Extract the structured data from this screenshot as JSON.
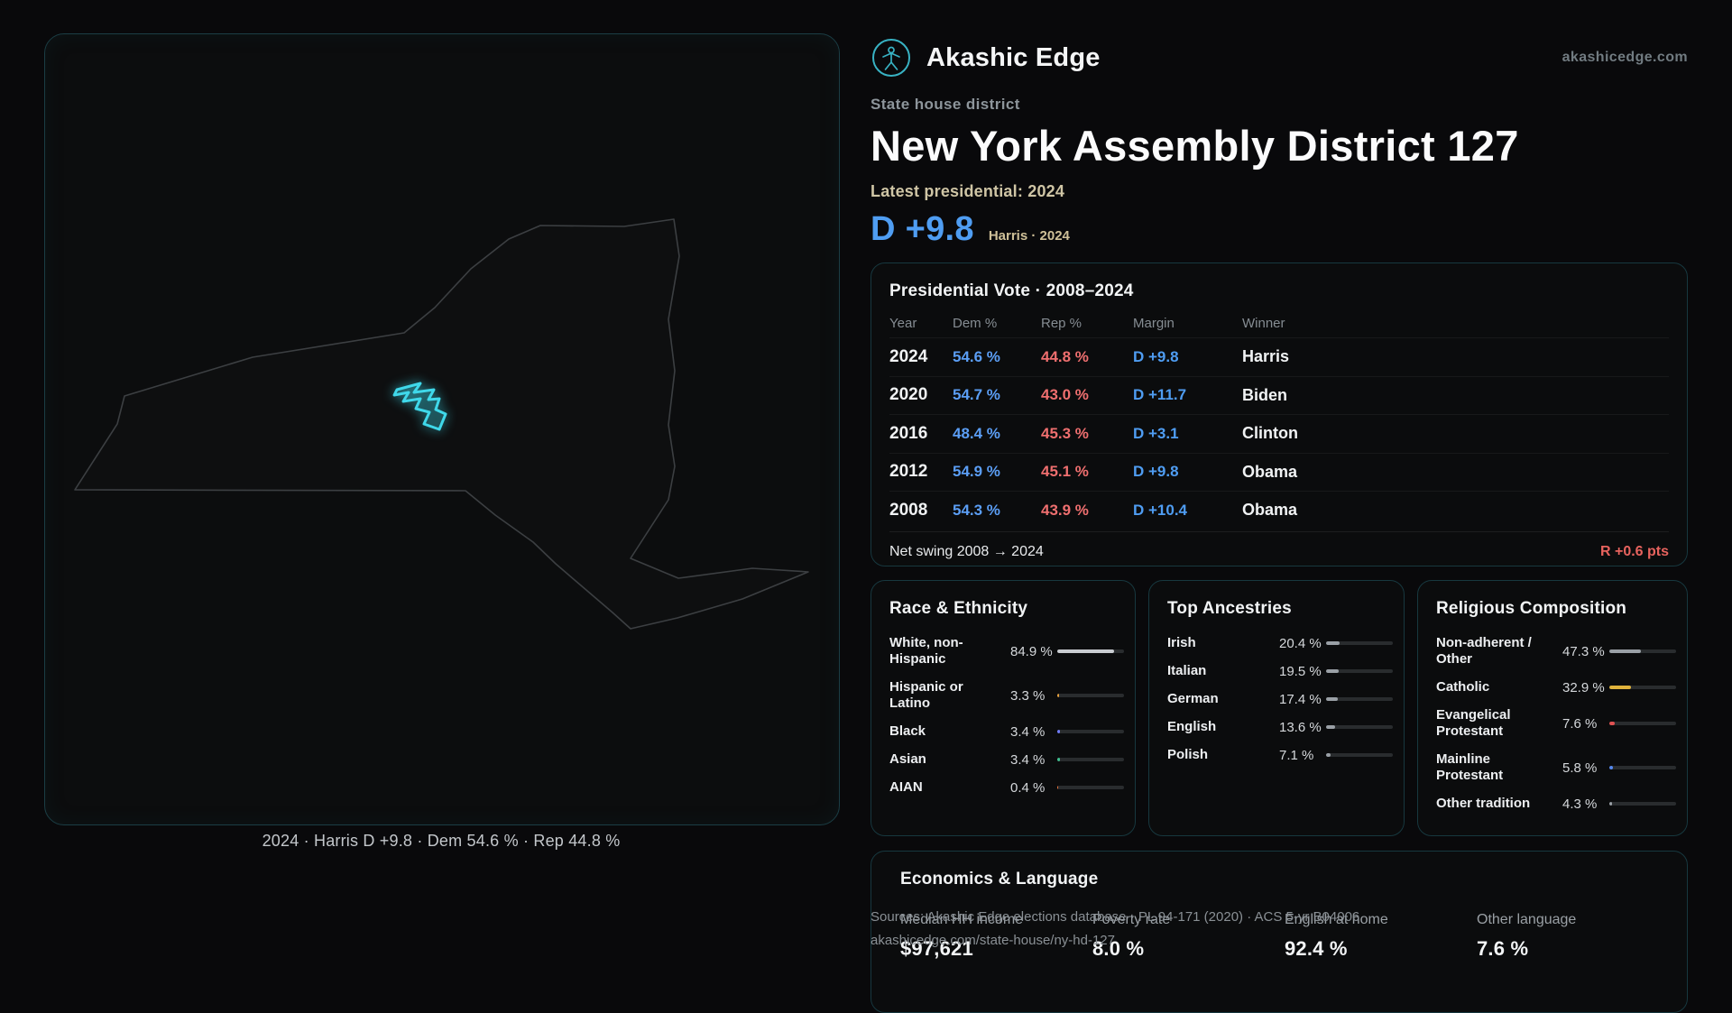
{
  "site": {
    "brand": "Akashic Edge",
    "domain": "akashicedge.com",
    "accent": "#38b2c3"
  },
  "map": {
    "caption": "2024 · Harris D +9.8 · Dem 54.6 % · Rep 44.8 %",
    "district_color": "#3fd8ea",
    "outline_color": "#3c3f42"
  },
  "header": {
    "kicker": "State house district",
    "title": "New York Assembly District 127",
    "latest_label": "Latest presidential: 2024",
    "margin_big": "D +9.8",
    "margin_note": "Harris · 2024",
    "dem_color": "#5b9ef5",
    "rep_color": "#ef6f6f"
  },
  "presidential": {
    "title": "Presidential Vote · 2008–2024",
    "columns": [
      "Year",
      "Dem %",
      "Rep %",
      "Margin",
      "Winner"
    ],
    "rows": [
      {
        "year": "2024",
        "dem": "54.6 %",
        "rep": "44.8 %",
        "margin": "D +9.8",
        "winner": "Harris"
      },
      {
        "year": "2020",
        "dem": "54.7 %",
        "rep": "43.0 %",
        "margin": "D +11.7",
        "winner": "Biden"
      },
      {
        "year": "2016",
        "dem": "48.4 %",
        "rep": "45.3 %",
        "margin": "D +3.1",
        "winner": "Clinton"
      },
      {
        "year": "2012",
        "dem": "54.9 %",
        "rep": "45.1 %",
        "margin": "D +9.8",
        "winner": "Obama"
      },
      {
        "year": "2008",
        "dem": "54.3 %",
        "rep": "43.9 %",
        "margin": "D +10.4",
        "winner": "Obama"
      }
    ],
    "footer_label": "Net swing 2008 → 2024",
    "footer_value": "R +0.6 pts"
  },
  "race": {
    "title": "Race & Ethnicity",
    "items": [
      {
        "label": "White, non-Hispanic",
        "value": "84.9 %",
        "pct": 84.9,
        "color": "#c9cdd1"
      },
      {
        "label": "Hispanic or Latino",
        "value": "3.3 %",
        "pct": 3.3,
        "color": "#e8a23c"
      },
      {
        "label": "Black",
        "value": "3.4 %",
        "pct": 3.4,
        "color": "#6f7bf7"
      },
      {
        "label": "Asian",
        "value": "3.4 %",
        "pct": 3.4,
        "color": "#3fbf8f"
      },
      {
        "label": "AIAN",
        "value": "0.4 %",
        "pct": 0.4,
        "color": "#e8743c"
      }
    ]
  },
  "ancestries": {
    "title": "Top Ancestries",
    "items": [
      {
        "label": "Irish",
        "value": "20.4 %",
        "pct": 20.4,
        "color": "#9aa0a6"
      },
      {
        "label": "Italian",
        "value": "19.5 %",
        "pct": 19.5,
        "color": "#9aa0a6"
      },
      {
        "label": "German",
        "value": "17.4 %",
        "pct": 17.4,
        "color": "#9aa0a6"
      },
      {
        "label": "English",
        "value": "13.6 %",
        "pct": 13.6,
        "color": "#9aa0a6"
      },
      {
        "label": "Polish",
        "value": "7.1 %",
        "pct": 7.1,
        "color": "#9aa0a6"
      }
    ]
  },
  "religion": {
    "title": "Religious Composition",
    "items": [
      {
        "label": "Non-adherent / Other",
        "value": "47.3 %",
        "pct": 47.3,
        "color": "#9aa0a6"
      },
      {
        "label": "Catholic",
        "value": "32.9 %",
        "pct": 32.9,
        "color": "#e0b33c"
      },
      {
        "label": "Evangelical Protestant",
        "value": "7.6 %",
        "pct": 7.6,
        "color": "#e05252"
      },
      {
        "label": "Mainline Protestant",
        "value": "5.8 %",
        "pct": 5.8,
        "color": "#5588ee"
      },
      {
        "label": "Other tradition",
        "value": "4.3 %",
        "pct": 4.3,
        "color": "#9aa0a6"
      }
    ]
  },
  "economics": {
    "title": "Economics & Language",
    "stats": [
      {
        "label": "Median HH income",
        "value": "$97,621"
      },
      {
        "label": "Poverty rate",
        "value": "8.0 %"
      },
      {
        "label": "English at home",
        "value": "92.4 %"
      },
      {
        "label": "Other language",
        "value": "7.6 %"
      }
    ]
  },
  "footer": {
    "sources": "Sources: Akashic Edge elections database · PL 94-171 (2020) · ACS 5-yr B04006",
    "permalink": "akashicedge.com/state-house/ny-hd-127"
  }
}
